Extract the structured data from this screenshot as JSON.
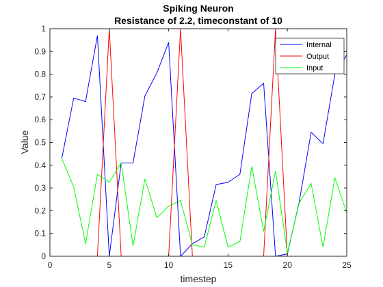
{
  "chart_data": {
    "type": "line",
    "title": "Spiking Neuron",
    "subtitle": "Resistance of 2.2, timeconstant of 10",
    "xlabel": "timestep",
    "ylabel": "Value",
    "xlim": [
      0,
      25
    ],
    "ylim": [
      0,
      1
    ],
    "xticks": [
      0,
      5,
      10,
      15,
      20,
      25
    ],
    "yticks": [
      0,
      0.1,
      0.2,
      0.3,
      0.4,
      0.5,
      0.6,
      0.7,
      0.8,
      0.9,
      1
    ],
    "xtick_labels": [
      "0",
      "5",
      "10",
      "15",
      "20",
      "25"
    ],
    "ytick_labels": [
      "0",
      "0.1",
      "0.2",
      "0.3",
      "0.4",
      "0.5",
      "0.6",
      "0.7",
      "0.8",
      "0.9",
      "1"
    ],
    "grid": false,
    "legend_position": "top-right",
    "x": [
      1,
      2,
      3,
      4,
      5,
      6,
      7,
      8,
      9,
      10,
      11,
      12,
      13,
      14,
      15,
      16,
      17,
      18,
      19,
      20,
      21,
      22,
      23,
      24,
      25
    ],
    "series": [
      {
        "name": "Internal",
        "color": "#0000ff",
        "values": [
          0.43,
          0.695,
          0.68,
          0.97,
          0.0,
          0.41,
          0.41,
          0.705,
          0.805,
          0.94,
          0.0,
          0.055,
          0.085,
          0.315,
          0.325,
          0.36,
          0.715,
          0.76,
          0.0,
          0.01,
          0.24,
          0.545,
          0.495,
          0.8,
          0.885
        ]
      },
      {
        "name": "Output",
        "color": "#ff0000",
        "values": [
          0,
          0,
          0,
          0,
          1,
          0,
          0,
          0,
          0,
          0,
          1,
          0,
          0,
          0,
          0,
          0,
          0,
          0,
          1,
          0,
          0,
          0,
          0,
          0,
          0
        ]
      },
      {
        "name": "Input",
        "color": "#00ff00",
        "values": [
          0.43,
          0.305,
          0.055,
          0.36,
          0.325,
          0.41,
          0.045,
          0.34,
          0.17,
          0.22,
          0.245,
          0.05,
          0.04,
          0.245,
          0.04,
          0.065,
          0.395,
          0.11,
          0.375,
          0.015,
          0.235,
          0.32,
          0.04,
          0.345,
          0.19
        ]
      }
    ]
  }
}
